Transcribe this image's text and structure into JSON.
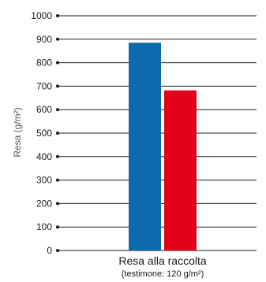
{
  "chart_data": {
    "type": "bar",
    "ylabel": "Resa (g/m²)",
    "ylim": [
      0,
      1000
    ],
    "y_ticks": [
      0,
      100,
      200,
      300,
      400,
      500,
      600,
      700,
      800,
      900,
      1000
    ],
    "grid": true,
    "categories": [
      "Resa alla raccolta"
    ],
    "category_note": "(testimone: 120 g/m²)",
    "series": [
      {
        "values": [
          885
        ],
        "color": "#0a6aad"
      },
      {
        "values": [
          682
        ],
        "color": "#e3001b"
      }
    ]
  }
}
